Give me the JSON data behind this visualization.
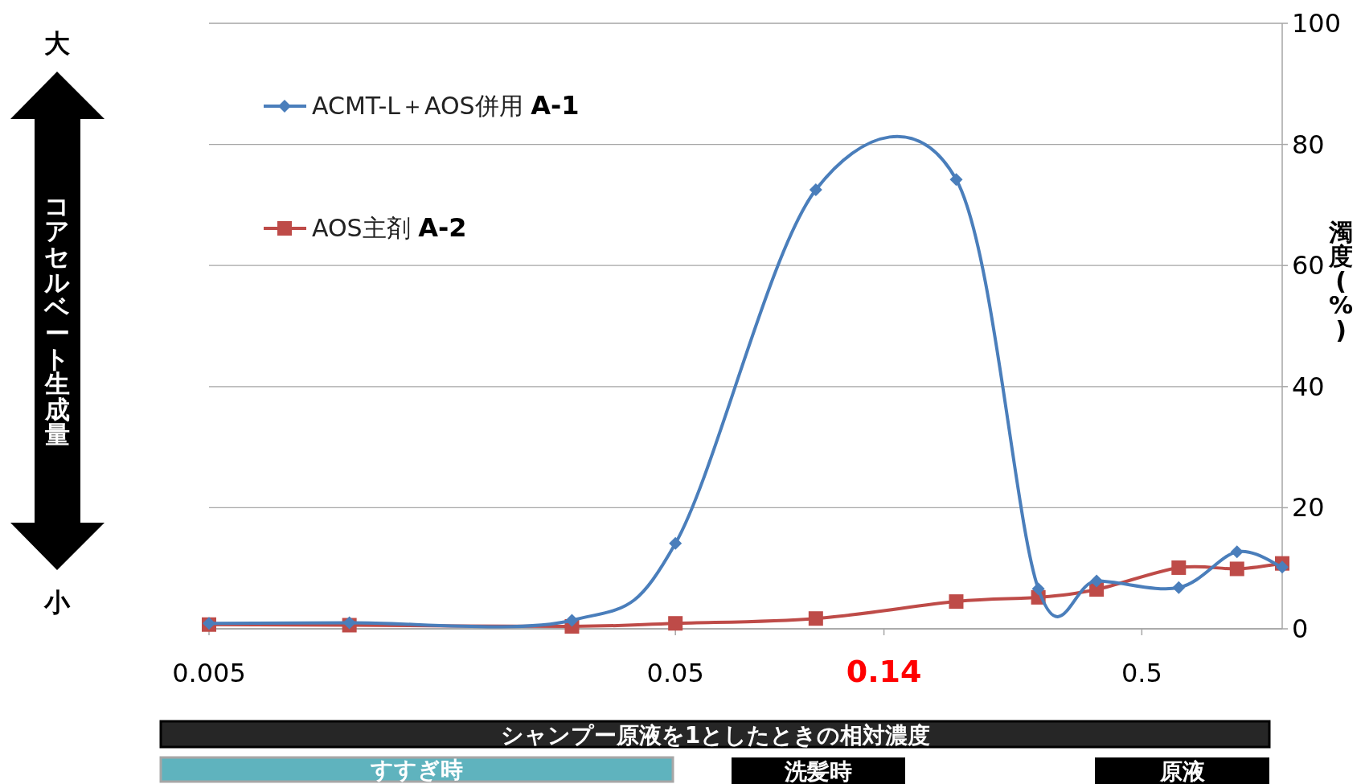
{
  "chart_data": {
    "type": "line",
    "xlabel": "シャンプー原液を1としたときの相対濃度",
    "ylabel": "濁度(%)",
    "x": [
      0.005,
      0.01,
      0.03,
      0.05,
      0.1,
      0.2,
      0.3,
      0.4,
      0.6,
      0.8,
      1
    ],
    "series": [
      {
        "name": "ACMT-L＋AOS併用 **A-1**",
        "color": "#4a7ebb",
        "marker": "diamond",
        "values": [
          0.9,
          1.0,
          1.4,
          14.1,
          72.5,
          74.2,
          6.6,
          7.9,
          6.8,
          12.7,
          10.2
        ]
      },
      {
        "name": "AOS主剤 **A-2**",
        "color": "#be4b48",
        "marker": "square",
        "values": [
          0.7,
          0.6,
          0.4,
          0.9,
          1.7,
          4.5,
          5.2,
          6.5,
          10.1,
          9.9,
          10.8
        ]
      }
    ],
    "log": "x",
    "xlim": [
      0.005,
      1
    ],
    "xticks": [
      0.005,
      0.05,
      0.14,
      0.5
    ],
    "ylim": [
      0,
      100
    ],
    "yticks": [
      0,
      20,
      40,
      60,
      80,
      100
    ],
    "grid": "y",
    "legend": "top left",
    "annotations": [
      "大",
      "コアセルベート生成量",
      "小",
      "すすぎ時",
      "洗髪時",
      "原液"
    ]
  }
}
